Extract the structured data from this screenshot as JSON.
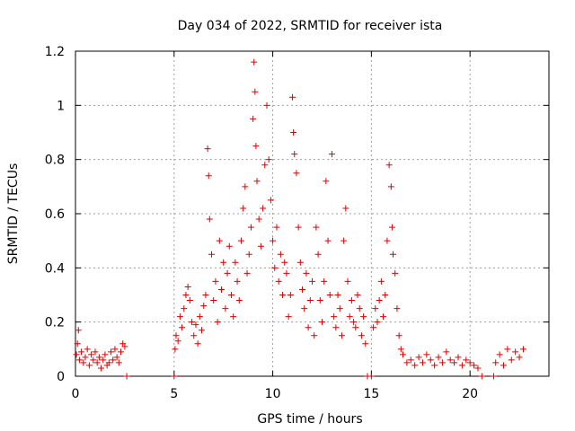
{
  "chart_data": {
    "type": "scatter",
    "title": "Day 034 of 2022, SRMTID for receiver ista",
    "xlabel": "GPS time / hours",
    "ylabel": "SRMTID / TECUs",
    "xlim": [
      0,
      24
    ],
    "ylim": [
      0,
      1.2
    ],
    "xticks": [
      0,
      5,
      10,
      15,
      20
    ],
    "xtick_labels": [
      "0",
      "5",
      "10",
      "15",
      "20"
    ],
    "yticks": [
      0,
      0.2,
      0.4,
      0.6,
      0.8,
      1,
      1.2
    ],
    "ytick_labels": [
      "0",
      "0.2",
      "0.4",
      "0.6",
      "0.8",
      "1",
      "1.2"
    ],
    "grid": true,
    "marker": "+",
    "color": "#e00000",
    "series": [
      {
        "name": "SRMTID",
        "points": [
          [
            0.05,
            0.08
          ],
          [
            0.1,
            0.12
          ],
          [
            0.15,
            0.17
          ],
          [
            0.2,
            0.06
          ],
          [
            0.3,
            0.09
          ],
          [
            0.4,
            0.05
          ],
          [
            0.5,
            0.07
          ],
          [
            0.6,
            0.1
          ],
          [
            0.7,
            0.04
          ],
          [
            0.8,
            0.08
          ],
          [
            0.9,
            0.06
          ],
          [
            1.0,
            0.09
          ],
          [
            1.1,
            0.05
          ],
          [
            1.2,
            0.07
          ],
          [
            1.3,
            0.03
          ],
          [
            1.4,
            0.06
          ],
          [
            1.5,
            0.08
          ],
          [
            1.6,
            0.04
          ],
          [
            1.7,
            0.05
          ],
          [
            1.8,
            0.09
          ],
          [
            1.9,
            0.06
          ],
          [
            2.0,
            0.1
          ],
          [
            2.1,
            0.07
          ],
          [
            2.2,
            0.05
          ],
          [
            2.3,
            0.09
          ],
          [
            2.4,
            0.12
          ],
          [
            2.5,
            0.11
          ],
          [
            2.6,
            0.0
          ],
          [
            5.0,
            0.0
          ],
          [
            5.05,
            0.1
          ],
          [
            5.1,
            0.15
          ],
          [
            5.2,
            0.13
          ],
          [
            5.3,
            0.22
          ],
          [
            5.4,
            0.18
          ],
          [
            5.5,
            0.25
          ],
          [
            5.6,
            0.3
          ],
          [
            5.7,
            0.33
          ],
          [
            5.8,
            0.28
          ],
          [
            5.9,
            0.2
          ],
          [
            6.0,
            0.15
          ],
          [
            6.1,
            0.19
          ],
          [
            6.2,
            0.12
          ],
          [
            6.3,
            0.22
          ],
          [
            6.4,
            0.17
          ],
          [
            6.5,
            0.26
          ],
          [
            6.6,
            0.3
          ],
          [
            6.7,
            0.84
          ],
          [
            6.75,
            0.74
          ],
          [
            6.8,
            0.58
          ],
          [
            6.9,
            0.45
          ],
          [
            7.0,
            0.28
          ],
          [
            7.1,
            0.35
          ],
          [
            7.2,
            0.2
          ],
          [
            7.3,
            0.5
          ],
          [
            7.4,
            0.32
          ],
          [
            7.5,
            0.42
          ],
          [
            7.6,
            0.25
          ],
          [
            7.7,
            0.38
          ],
          [
            7.8,
            0.48
          ],
          [
            7.9,
            0.3
          ],
          [
            8.0,
            0.22
          ],
          [
            8.1,
            0.42
          ],
          [
            8.2,
            0.35
          ],
          [
            8.3,
            0.28
          ],
          [
            8.4,
            0.5
          ],
          [
            8.5,
            0.62
          ],
          [
            8.6,
            0.7
          ],
          [
            8.7,
            0.38
          ],
          [
            8.8,
            0.45
          ],
          [
            8.9,
            0.55
          ],
          [
            9.0,
            0.95
          ],
          [
            9.05,
            1.16
          ],
          [
            9.1,
            1.05
          ],
          [
            9.15,
            0.85
          ],
          [
            9.2,
            0.72
          ],
          [
            9.3,
            0.58
          ],
          [
            9.4,
            0.48
          ],
          [
            9.5,
            0.62
          ],
          [
            9.6,
            0.78
          ],
          [
            9.7,
            1.0
          ],
          [
            9.8,
            0.8
          ],
          [
            9.9,
            0.65
          ],
          [
            10.0,
            0.5
          ],
          [
            10.1,
            0.4
          ],
          [
            10.2,
            0.55
          ],
          [
            10.3,
            0.35
          ],
          [
            10.4,
            0.45
          ],
          [
            10.5,
            0.3
          ],
          [
            10.6,
            0.42
          ],
          [
            10.7,
            0.38
          ],
          [
            10.8,
            0.22
          ],
          [
            10.9,
            0.3
          ],
          [
            11.0,
            1.03
          ],
          [
            11.05,
            0.9
          ],
          [
            11.1,
            0.82
          ],
          [
            11.2,
            0.75
          ],
          [
            11.3,
            0.55
          ],
          [
            11.4,
            0.42
          ],
          [
            11.5,
            0.32
          ],
          [
            11.6,
            0.25
          ],
          [
            11.7,
            0.38
          ],
          [
            11.8,
            0.18
          ],
          [
            11.9,
            0.28
          ],
          [
            12.0,
            0.35
          ],
          [
            12.1,
            0.15
          ],
          [
            12.2,
            0.55
          ],
          [
            12.3,
            0.45
          ],
          [
            12.4,
            0.28
          ],
          [
            12.5,
            0.2
          ],
          [
            12.6,
            0.35
          ],
          [
            12.7,
            0.72
          ],
          [
            12.8,
            0.5
          ],
          [
            12.9,
            0.3
          ],
          [
            13.0,
            0.82
          ],
          [
            13.1,
            0.22
          ],
          [
            13.2,
            0.18
          ],
          [
            13.3,
            0.3
          ],
          [
            13.4,
            0.25
          ],
          [
            13.5,
            0.15
          ],
          [
            13.6,
            0.5
          ],
          [
            13.7,
            0.62
          ],
          [
            13.8,
            0.35
          ],
          [
            13.9,
            0.22
          ],
          [
            14.0,
            0.28
          ],
          [
            14.1,
            0.2
          ],
          [
            14.2,
            0.18
          ],
          [
            14.3,
            0.3
          ],
          [
            14.4,
            0.25
          ],
          [
            14.5,
            0.15
          ],
          [
            14.6,
            0.22
          ],
          [
            14.7,
            0.12
          ],
          [
            14.8,
            0.0
          ],
          [
            15.0,
            0.0
          ],
          [
            15.1,
            0.18
          ],
          [
            15.2,
            0.25
          ],
          [
            15.3,
            0.2
          ],
          [
            15.4,
            0.28
          ],
          [
            15.5,
            0.35
          ],
          [
            15.6,
            0.22
          ],
          [
            15.7,
            0.3
          ],
          [
            15.8,
            0.5
          ],
          [
            15.9,
            0.78
          ],
          [
            16.0,
            0.7
          ],
          [
            16.05,
            0.55
          ],
          [
            16.1,
            0.45
          ],
          [
            16.2,
            0.38
          ],
          [
            16.3,
            0.25
          ],
          [
            16.4,
            0.15
          ],
          [
            16.5,
            0.1
          ],
          [
            16.6,
            0.08
          ],
          [
            16.8,
            0.05
          ],
          [
            17.0,
            0.06
          ],
          [
            17.2,
            0.04
          ],
          [
            17.4,
            0.07
          ],
          [
            17.6,
            0.05
          ],
          [
            17.8,
            0.08
          ],
          [
            18.0,
            0.06
          ],
          [
            18.2,
            0.04
          ],
          [
            18.4,
            0.07
          ],
          [
            18.6,
            0.05
          ],
          [
            18.8,
            0.09
          ],
          [
            19.0,
            0.06
          ],
          [
            19.2,
            0.05
          ],
          [
            19.4,
            0.07
          ],
          [
            19.6,
            0.04
          ],
          [
            19.8,
            0.06
          ],
          [
            20.0,
            0.05
          ],
          [
            20.2,
            0.04
          ],
          [
            20.4,
            0.03
          ],
          [
            20.6,
            0.0
          ],
          [
            21.2,
            0.0
          ],
          [
            21.3,
            0.05
          ],
          [
            21.5,
            0.08
          ],
          [
            21.7,
            0.04
          ],
          [
            21.9,
            0.1
          ],
          [
            22.1,
            0.06
          ],
          [
            22.3,
            0.09
          ],
          [
            22.5,
            0.07
          ],
          [
            22.7,
            0.1
          ]
        ]
      }
    ]
  }
}
